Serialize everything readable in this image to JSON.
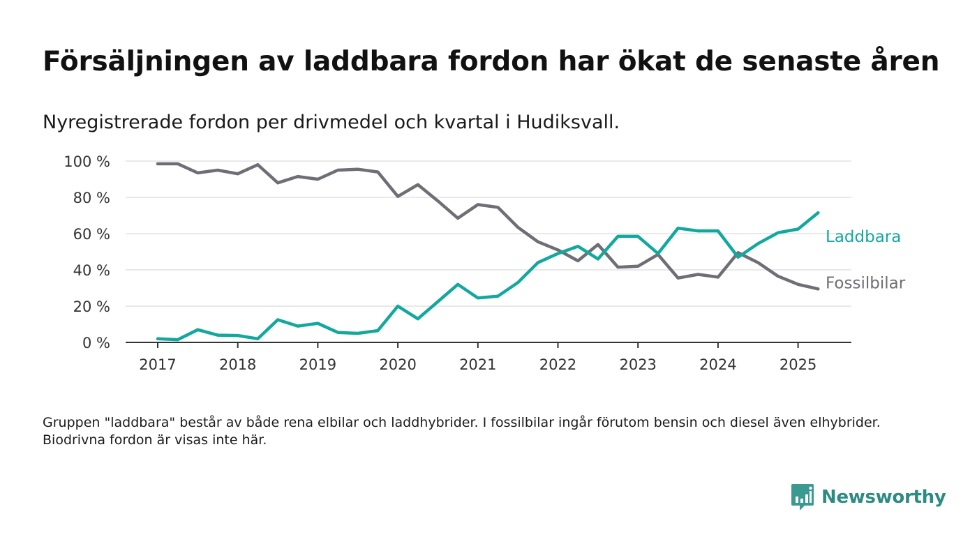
{
  "title": "Försäljningen av laddbara fordon har ökat de senaste åren",
  "subtitle": "Nyregistrerade fordon per drivmedel och kvartal i Hudiksvall.",
  "note": "Gruppen \"laddbara\" består av både rena elbilar och laddhybrider. I fossilbilar ingår förutom bensin och diesel även elhybrider. Biodrivna fordon är visas inte här.",
  "logo": {
    "text": "Newsworthy",
    "icon": "newsworthy-chart-bubble-icon",
    "color": "#3a9990"
  },
  "chart_data": {
    "type": "line",
    "ylim": [
      0,
      100
    ],
    "yticks": [
      0,
      20,
      40,
      60,
      80,
      100
    ],
    "ytick_labels": [
      "0 %",
      "20 %",
      "40 %",
      "60 %",
      "80 %",
      "100 %"
    ],
    "xticks": [
      "2017",
      "2018",
      "2019",
      "2020",
      "2021",
      "2022",
      "2023",
      "2024",
      "2025"
    ],
    "grid": true,
    "legend": "inline-right",
    "x": [
      "2017 Q1",
      "2017 Q2",
      "2017 Q3",
      "2017 Q4",
      "2018 Q1",
      "2018 Q2",
      "2018 Q3",
      "2018 Q4",
      "2019 Q1",
      "2019 Q2",
      "2019 Q3",
      "2019 Q4",
      "2020 Q1",
      "2020 Q2",
      "2020 Q3",
      "2020 Q4",
      "2021 Q1",
      "2021 Q2",
      "2021 Q3",
      "2021 Q4",
      "2022 Q1",
      "2022 Q2",
      "2022 Q3",
      "2022 Q4",
      "2023 Q1",
      "2023 Q2",
      "2023 Q3",
      "2023 Q4",
      "2024 Q1",
      "2024 Q2",
      "2024 Q3",
      "2024 Q4",
      "2025 Q1",
      "2025 Q2"
    ],
    "series": [
      {
        "name": "Laddbara",
        "color": "#13a89e",
        "values": [
          2,
          1.5,
          7,
          4,
          3.8,
          2,
          12.5,
          9,
          10.5,
          5.5,
          5,
          6.5,
          20,
          13,
          22.5,
          32,
          24.5,
          25.5,
          33,
          44,
          49,
          53,
          46,
          58.5,
          58.5,
          49,
          63,
          61.5,
          61.5,
          47,
          54.5,
          60.5,
          62.5,
          71.5
        ]
      },
      {
        "name": "Fossilbilar",
        "color": "#6e6e76",
        "values": [
          98.5,
          98.5,
          93.5,
          95,
          93,
          98,
          88,
          91.5,
          90,
          95,
          95.5,
          94,
          80.5,
          87,
          78,
          68.5,
          76,
          74.5,
          63.5,
          55.5,
          51,
          45,
          54,
          41.5,
          42,
          48.5,
          35.5,
          37.5,
          36,
          49.5,
          44,
          36.5,
          32,
          29.5
        ]
      }
    ]
  }
}
